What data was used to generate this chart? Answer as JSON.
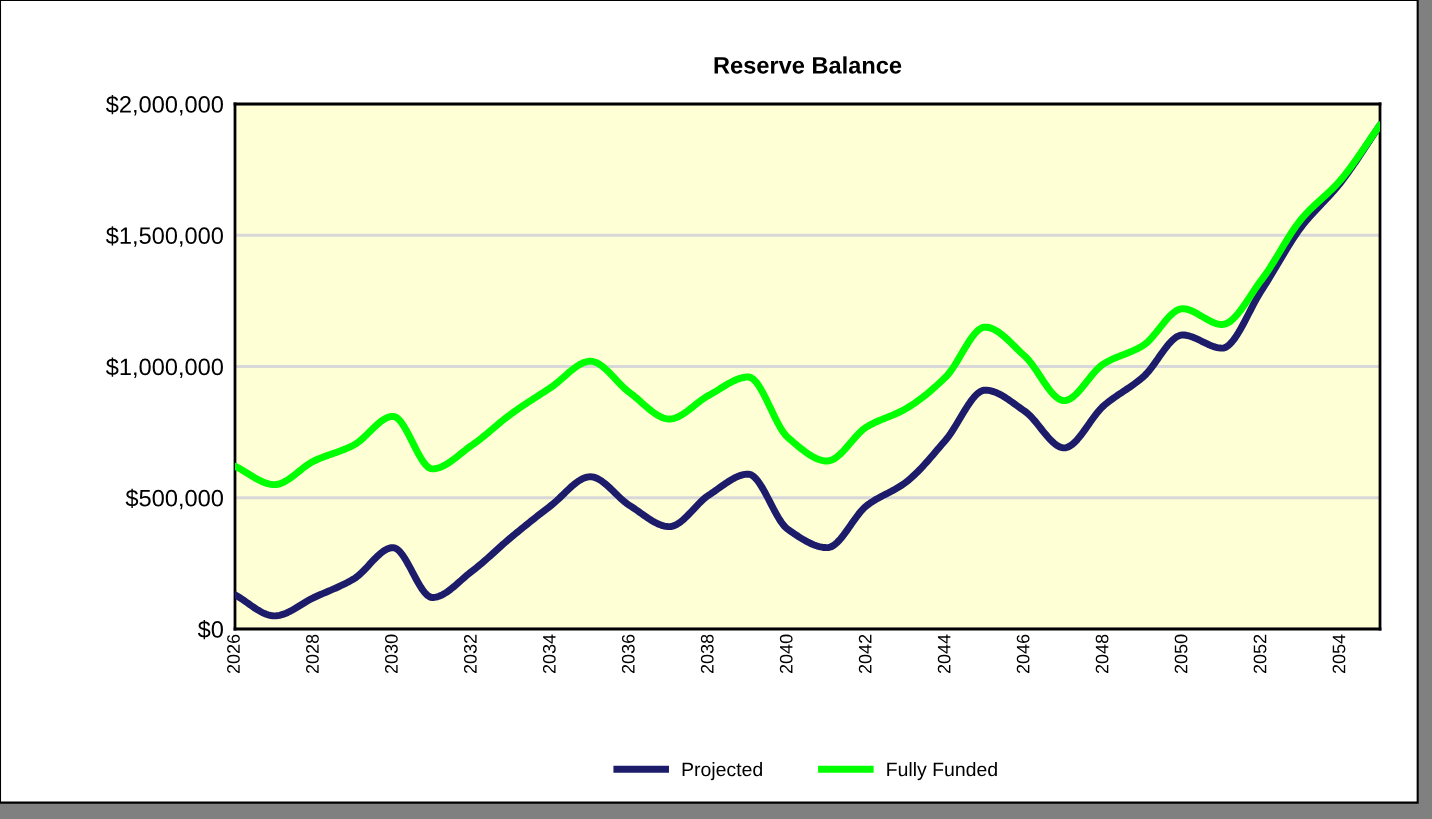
{
  "chart_data": {
    "type": "line",
    "title": "Reserve Balance",
    "x": [
      2026,
      2027,
      2028,
      2029,
      2030,
      2031,
      2032,
      2033,
      2034,
      2035,
      2036,
      2037,
      2038,
      2039,
      2040,
      2041,
      2042,
      2043,
      2044,
      2045,
      2046,
      2047,
      2048,
      2049,
      2050,
      2051,
      2052,
      2053,
      2054,
      2055
    ],
    "series": [
      {
        "name": "Projected",
        "color": "#1c1c6b",
        "values": [
          130000,
          50000,
          120000,
          190000,
          310000,
          120000,
          220000,
          350000,
          470000,
          580000,
          470000,
          390000,
          510000,
          590000,
          380000,
          310000,
          470000,
          560000,
          720000,
          910000,
          830000,
          690000,
          850000,
          960000,
          1120000,
          1070000,
          1290000,
          1530000,
          1700000,
          1920000
        ]
      },
      {
        "name": "Fully Funded",
        "color": "#00ff00",
        "values": [
          620000,
          550000,
          640000,
          700000,
          810000,
          610000,
          700000,
          820000,
          920000,
          1020000,
          900000,
          800000,
          890000,
          960000,
          730000,
          640000,
          770000,
          840000,
          960000,
          1150000,
          1040000,
          870000,
          1010000,
          1080000,
          1220000,
          1160000,
          1330000,
          1560000,
          1710000,
          1920000
        ]
      }
    ],
    "xlim": [
      2026,
      2055
    ],
    "xticks": [
      2026,
      2028,
      2030,
      2032,
      2034,
      2036,
      2038,
      2040,
      2042,
      2044,
      2046,
      2048,
      2050,
      2052,
      2054
    ],
    "ylim": [
      0,
      2000000
    ],
    "yticks": [
      {
        "value": 0,
        "label": "$0"
      },
      {
        "value": 500000,
        "label": "$500,000"
      },
      {
        "value": 1000000,
        "label": "$1,000,000"
      },
      {
        "value": 1500000,
        "label": "$1,500,000"
      },
      {
        "value": 2000000,
        "label": "$2,000,000"
      }
    ],
    "grid": "y",
    "legend": "bottom",
    "line_style": "solid",
    "marker": "none"
  }
}
